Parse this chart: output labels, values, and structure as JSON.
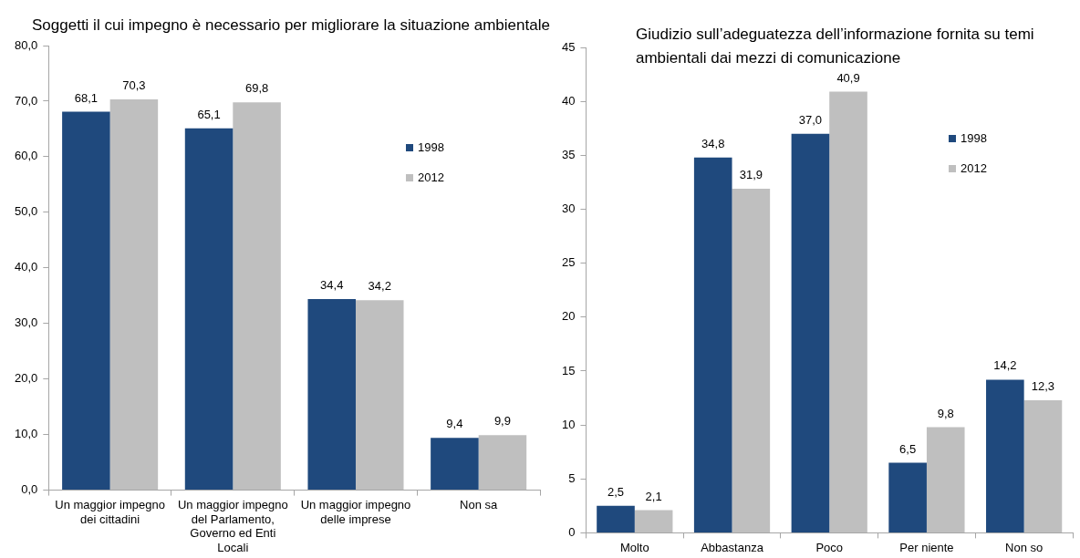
{
  "chart_data": [
    {
      "type": "bar",
      "title": "Soggetti il cui impegno è necessario per migliorare la situazione ambientale",
      "categories": [
        "Un maggior impegno dei cittadini",
        "Un maggior impegno del Parlamento, Governo ed Enti Locali",
        "Un maggior impegno delle imprese",
        "Non sa"
      ],
      "series": [
        {
          "name": "1998",
          "color": "#1f497d",
          "values": [
            68.1,
            65.1,
            34.4,
            9.4
          ],
          "value_labels": [
            "68,1",
            "65,1",
            "34,4",
            "9,4"
          ]
        },
        {
          "name": "2012",
          "color": "#bfbfbf",
          "values": [
            70.3,
            69.8,
            34.2,
            9.9
          ],
          "value_labels": [
            "70,3",
            "69,8",
            "34,2",
            "9,9"
          ]
        }
      ],
      "ylim": [
        0,
        80
      ],
      "yticks": [
        {
          "value": 0,
          "label": "0,0"
        },
        {
          "value": 10,
          "label": "10,0"
        },
        {
          "value": 20,
          "label": "20,0"
        },
        {
          "value": 30,
          "label": "30,0"
        },
        {
          "value": 40,
          "label": "40,0"
        },
        {
          "value": 50,
          "label": "50,0"
        },
        {
          "value": 60,
          "label": "60,0"
        },
        {
          "value": 70,
          "label": "70,0"
        },
        {
          "value": 80,
          "label": "80,0"
        }
      ],
      "grid": false,
      "legend": "top right"
    },
    {
      "type": "bar",
      "title": "Giudizio sull’adeguatezza dell’informazione fornita su temi ambientali dai mezzi di comunicazione",
      "categories": [
        "Molto",
        "Abbastanza",
        "Poco",
        "Per niente",
        "Non so"
      ],
      "series": [
        {
          "name": "1998",
          "color": "#1f497d",
          "values": [
            2.5,
            34.8,
            37.0,
            6.5,
            14.2
          ],
          "value_labels": [
            "2,5",
            "34,8",
            "37,0",
            "6,5",
            "14,2"
          ]
        },
        {
          "name": "2012",
          "color": "#bfbfbf",
          "values": [
            2.1,
            31.9,
            40.9,
            9.8,
            12.3
          ],
          "value_labels": [
            "2,1",
            "31,9",
            "40,9",
            "9,8",
            "12,3"
          ]
        }
      ],
      "ylim": [
        0,
        45
      ],
      "yticks": [
        0,
        5,
        10,
        15,
        20,
        25,
        30,
        35,
        40,
        45
      ],
      "grid": false,
      "legend": "top right"
    }
  ]
}
